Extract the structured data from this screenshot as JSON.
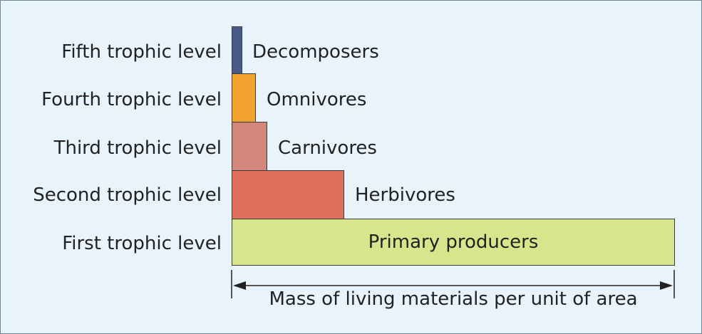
{
  "levels": [
    {
      "label": "Fifth trophic level",
      "group": "Decomposers",
      "color": "#4a5a88"
    },
    {
      "label": "Fourth trophic level",
      "group": "Omnivores",
      "color": "#f3a42f"
    },
    {
      "label": "Third trophic level",
      "group": "Carnivores",
      "color": "#d3867a"
    },
    {
      "label": "Second trophic level",
      "group": "Herbivores",
      "color": "#e0705e"
    },
    {
      "label": "First trophic level",
      "group": "Primary producers",
      "color": "#d9e58c"
    }
  ],
  "axis": {
    "label": "Mass of living materials per unit of area"
  }
}
